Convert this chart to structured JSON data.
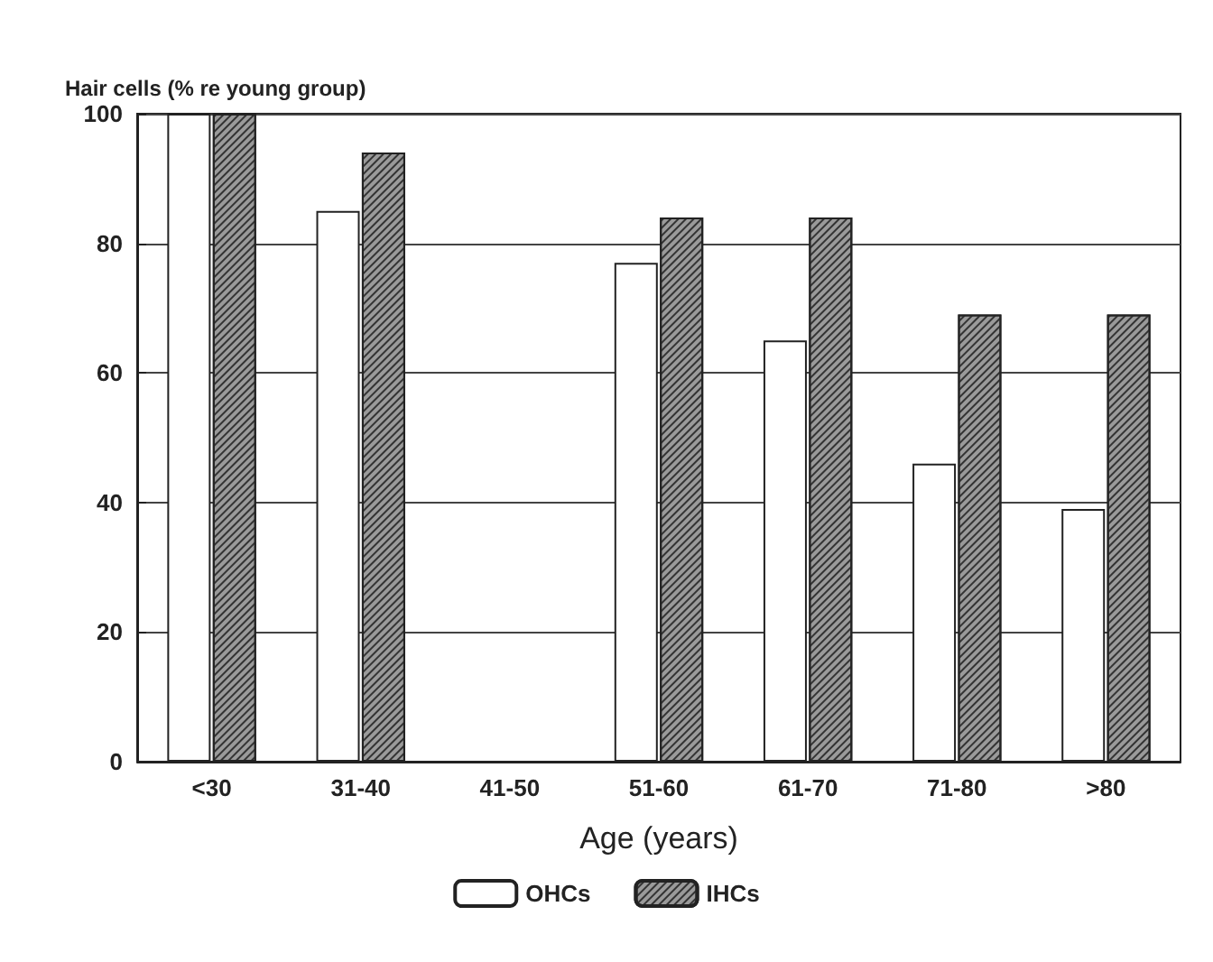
{
  "chart_data": {
    "type": "bar",
    "ylabel": "Hair cells (% re young group)",
    "xlabel": "Age (years)",
    "categories": [
      "<30",
      "31-40",
      "41-50",
      "51-60",
      "61-70",
      "71-80",
      ">80"
    ],
    "series": [
      {
        "name": "OHCs",
        "color": "#ffffff",
        "values": [
          100,
          85,
          null,
          77,
          65,
          46,
          39
        ]
      },
      {
        "name": "IHCs",
        "color": "#9a9a9a",
        "values": [
          100,
          94,
          null,
          84,
          84,
          69,
          69
        ]
      }
    ],
    "ylim": [
      0,
      100
    ],
    "yticks": [
      0,
      20,
      40,
      60,
      80,
      100
    ],
    "grid": "y",
    "legend": "bottom"
  }
}
